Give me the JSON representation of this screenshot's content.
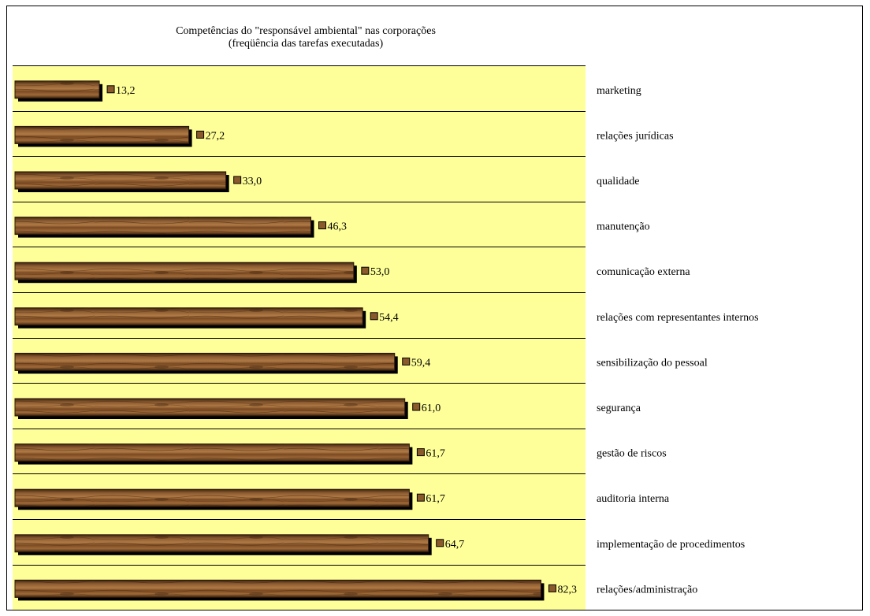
{
  "chart_data": {
    "type": "bar",
    "orientation": "horizontal",
    "title": "Competências do \"responsável ambiental\" nas corporações",
    "subtitle": "(freqüência das tarefas executadas)",
    "categories": [
      "marketing",
      "relações jurídicas",
      "qualidade",
      "manutenção",
      "comunicação externa",
      "relações com representantes internos",
      "sensibilização do pessoal",
      "segurança",
      "gestão de riscos",
      "auditoria interna",
      "implementação de procedimentos",
      "relações/administração"
    ],
    "values": [
      13.2,
      27.2,
      33.0,
      46.3,
      53.0,
      54.4,
      59.4,
      61.0,
      61.7,
      61.7,
      64.7,
      82.3
    ],
    "value_labels": [
      "13,2",
      "27,2",
      "33,0",
      "46,3",
      "53,0",
      "54,4",
      "59,4",
      "61,0",
      "61,7",
      "61,7",
      "64,7",
      "82,3"
    ],
    "grid": true,
    "legend": "none",
    "colors": {
      "plot_background": "#ffff99",
      "bar": "#7a4a22",
      "bar_shadow": "#000000",
      "marker": "#8b5a2b"
    }
  }
}
